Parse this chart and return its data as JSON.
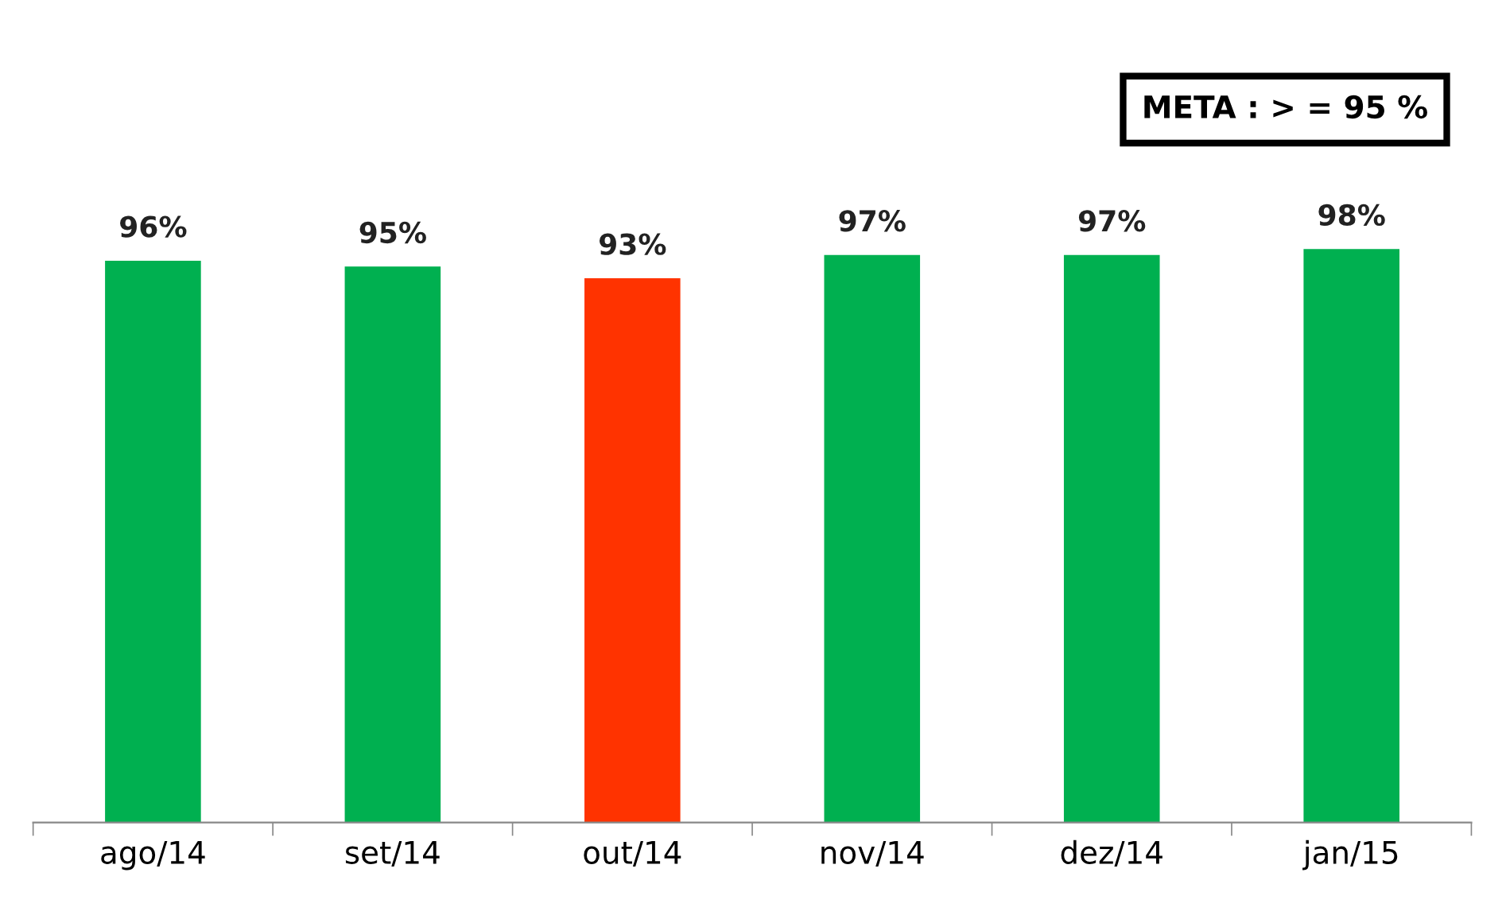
{
  "chart_data": {
    "type": "bar",
    "categories": [
      "ago/14",
      "set/14",
      "out/14",
      "nov/14",
      "dez/14",
      "jan/15"
    ],
    "values": [
      96,
      95,
      93,
      97,
      97,
      98
    ],
    "colors": [
      "#00b050",
      "#00b050",
      "#ff3300",
      "#00b050",
      "#00b050",
      "#00b050"
    ],
    "value_labels": [
      "96%",
      "95%",
      "93%",
      "97%",
      "97%",
      "98%"
    ],
    "annotations": [
      "META : > = 95 %"
    ],
    "tick_labels": "x",
    "grid": false,
    "legend": false
  }
}
